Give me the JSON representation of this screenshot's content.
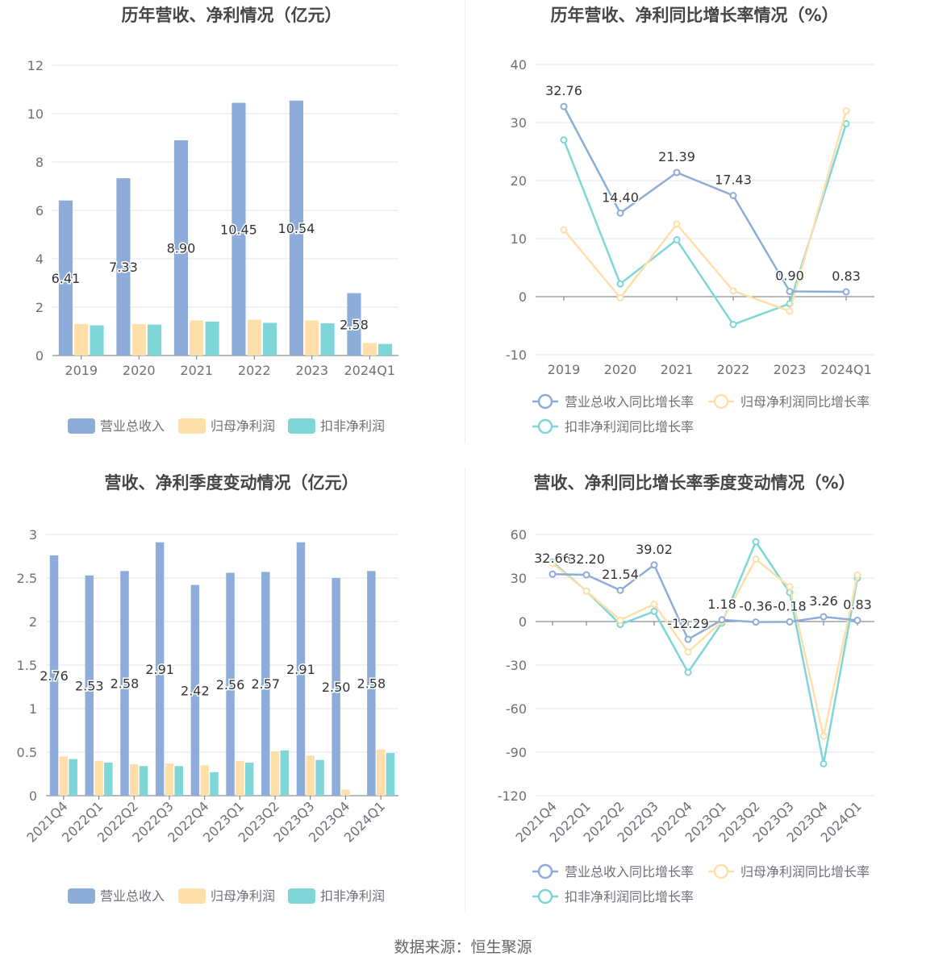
{
  "colors": {
    "revenue": "#8eacd9",
    "net_profit": "#fedfa9",
    "deducted_profit": "#7fd6d8",
    "axis": "#6e7079",
    "grid": "#e0e6f1",
    "label": "#333333",
    "title": "#464646"
  },
  "source": "数据来源：恒生聚源",
  "chart_data": [
    {
      "type": "bar",
      "title": "历年营收、净利情况（亿元）",
      "categories": [
        "2019",
        "2020",
        "2021",
        "2022",
        "2023",
        "2024Q1"
      ],
      "yticks": [
        "0",
        "2",
        "4",
        "6",
        "8",
        "10",
        "12"
      ],
      "ylim": [
        0,
        12
      ],
      "legend_position": "bottom",
      "series": [
        {
          "name": "营业总收入",
          "values": [
            6.41,
            7.33,
            8.9,
            10.45,
            10.54,
            2.58
          ],
          "labels": [
            "6.41",
            "7.33",
            "8.90",
            "10.45",
            "10.54",
            "2.58"
          ]
        },
        {
          "name": "归母净利润",
          "values": [
            1.3,
            1.3,
            1.45,
            1.48,
            1.45,
            0.52
          ]
        },
        {
          "name": "扣非净利润",
          "values": [
            1.25,
            1.28,
            1.4,
            1.35,
            1.33,
            0.48
          ]
        }
      ]
    },
    {
      "type": "line",
      "title": "历年营收、净利同比增长率情况（%）",
      "categories": [
        "2019",
        "2020",
        "2021",
        "2022",
        "2023",
        "2024Q1"
      ],
      "yticks": [
        "-10",
        "0",
        "10",
        "20",
        "30",
        "40"
      ],
      "ylim": [
        -10,
        40
      ],
      "legend_position": "bottom",
      "series": [
        {
          "name": "营业总收入同比增长率",
          "values": [
            32.76,
            14.4,
            21.39,
            17.43,
            0.9,
            0.83
          ],
          "labels": [
            "32.76",
            "14.40",
            "21.39",
            "17.43",
            "0.90",
            "0.83"
          ]
        },
        {
          "name": "归母净利润同比增长率",
          "values": [
            11.5,
            -0.2,
            12.5,
            1.0,
            -2.5,
            32.0
          ]
        },
        {
          "name": "扣非净利润同比增长率",
          "values": [
            27.0,
            2.2,
            9.8,
            -4.8,
            -1.2,
            29.8
          ]
        }
      ]
    },
    {
      "type": "bar",
      "title": "营收、净利季度变动情况（亿元）",
      "categories": [
        "2021Q4",
        "2022Q1",
        "2022Q2",
        "2022Q3",
        "2022Q4",
        "2023Q1",
        "2023Q2",
        "2023Q3",
        "2023Q4",
        "2024Q1"
      ],
      "yticks": [
        "0",
        "0.5",
        "1",
        "1.5",
        "2",
        "2.5",
        "3"
      ],
      "ylim": [
        0,
        3
      ],
      "legend_position": "bottom",
      "series": [
        {
          "name": "营业总收入",
          "values": [
            2.76,
            2.53,
            2.58,
            2.91,
            2.42,
            2.56,
            2.57,
            2.91,
            2.5,
            2.58
          ],
          "labels": [
            "2.76",
            "2.53",
            "2.58",
            "2.91",
            "2.42",
            "2.56",
            "2.57",
            "2.91",
            "2.50",
            "2.58"
          ]
        },
        {
          "name": "归母净利润",
          "values": [
            0.45,
            0.4,
            0.36,
            0.37,
            0.35,
            0.4,
            0.51,
            0.46,
            0.07,
            0.53
          ]
        },
        {
          "name": "扣非净利润",
          "values": [
            0.42,
            0.38,
            0.34,
            0.34,
            0.27,
            0.38,
            0.52,
            0.41,
            0.0,
            0.49
          ]
        }
      ]
    },
    {
      "type": "line",
      "title": "营收、净利同比增长率季度变动情况（%）",
      "categories": [
        "2021Q4",
        "2022Q1",
        "2022Q2",
        "2022Q3",
        "2022Q4",
        "2023Q1",
        "2023Q2",
        "2023Q3",
        "2023Q4",
        "2024Q1"
      ],
      "yticks": [
        "-120",
        "-90",
        "-60",
        "-30",
        "0",
        "30",
        "60"
      ],
      "ylim": [
        -120,
        60
      ],
      "legend_position": "bottom",
      "series": [
        {
          "name": "营业总收入同比增长率",
          "values": [
            32.66,
            32.2,
            21.54,
            39.02,
            -12.29,
            1.18,
            -0.36,
            -0.18,
            3.26,
            0.83
          ],
          "labels": [
            "32.66",
            "32.20",
            "21.54",
            "39.02",
            "-12.29",
            "1.18",
            "-0.36",
            "-0.18",
            "3.26",
            "0.83"
          ]
        },
        {
          "name": "归母净利润同比增长率",
          "values": [
            40.0,
            21.0,
            1.0,
            12.0,
            -21.0,
            0.0,
            43.0,
            24.0,
            -79.0,
            32.0
          ]
        },
        {
          "name": "扣非净利润同比增长率",
          "values": [
            41.0,
            21.0,
            -2.0,
            7.0,
            -35.0,
            -1.0,
            55.0,
            20.0,
            -98.0,
            30.0
          ]
        }
      ]
    }
  ]
}
